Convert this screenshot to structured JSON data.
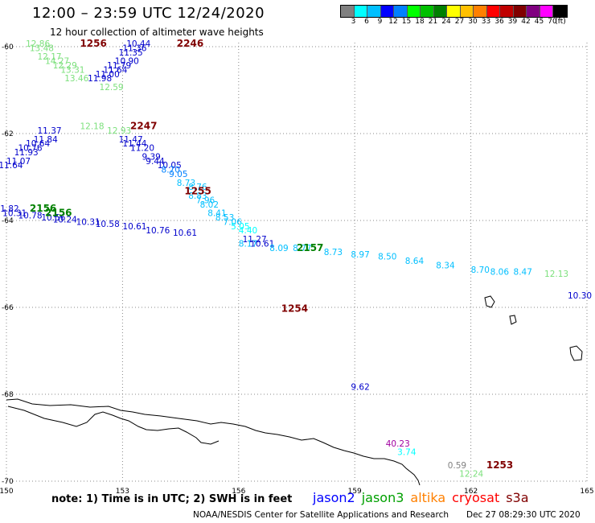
{
  "title": "12:00 – 23:59 UTC 12/24/2020",
  "subtitle": "12 hour collection of altimeter wave heights",
  "legend": {
    "colors": [
      "#808080",
      "#00ffff",
      "#00bfff",
      "#0000ff",
      "#0080ff",
      "#00ff00",
      "#00c000",
      "#008000",
      "#ffff00",
      "#ffc000",
      "#ff8000",
      "#ff0000",
      "#c00000",
      "#800000",
      "#800080",
      "#ff00ff",
      "#000000"
    ],
    "labels": [
      "3",
      "6",
      "9",
      "12",
      "15",
      "18",
      "21",
      "24",
      "27",
      "30",
      "33",
      "36",
      "39",
      "42",
      "45",
      "70",
      "(ft)"
    ]
  },
  "axes": {
    "lon_ticks": [
      "150",
      "153",
      "156",
      "159",
      "162",
      "165"
    ],
    "lat_ticks": [
      "-60",
      "-62",
      "-64",
      "-66",
      "-68",
      "-70"
    ]
  },
  "time_labels": [
    {
      "text": "1256",
      "lon": 151.9,
      "lat": -60.0,
      "color": "#800000"
    },
    {
      "text": "2246",
      "lon": 154.4,
      "lat": -60.0,
      "color": "#800000"
    },
    {
      "text": "2247",
      "lon": 153.2,
      "lat": -61.9,
      "color": "#800000"
    },
    {
      "text": "1255",
      "lon": 154.6,
      "lat": -63.4,
      "color": "#800000"
    },
    {
      "text": "2156",
      "lon": 150.6,
      "lat": -63.8,
      "color": "#008000"
    },
    {
      "text": "2156",
      "lon": 151.0,
      "lat": -63.9,
      "color": "#008000"
    },
    {
      "text": "2157",
      "lon": 157.5,
      "lat": -64.7,
      "color": "#008000"
    },
    {
      "text": "1254",
      "lon": 157.1,
      "lat": -66.1,
      "color": "#800000"
    },
    {
      "text": "1253",
      "lon": 162.4,
      "lat": -69.7,
      "color": "#800000"
    }
  ],
  "wave_heights": [
    {
      "v": "12.86",
      "lon": 150.5,
      "lat": -60.0,
      "c": "#7ce07c"
    },
    {
      "v": "13.48",
      "lon": 150.6,
      "lat": -60.1,
      "c": "#7ce07c"
    },
    {
      "v": "12.17",
      "lon": 150.8,
      "lat": -60.3,
      "c": "#7ce07c"
    },
    {
      "v": "14.27",
      "lon": 151.0,
      "lat": -60.4,
      "c": "#7ce07c"
    },
    {
      "v": "12.29",
      "lon": 151.2,
      "lat": -60.5,
      "c": "#7ce07c"
    },
    {
      "v": "13.31",
      "lon": 151.4,
      "lat": -60.6,
      "c": "#7ce07c"
    },
    {
      "v": "13.46",
      "lon": 151.5,
      "lat": -60.8,
      "c": "#7ce07c"
    },
    {
      "v": "12.59",
      "lon": 152.4,
      "lat": -61.0,
      "c": "#7ce07c"
    },
    {
      "v": "12.18",
      "lon": 151.9,
      "lat": -61.9,
      "c": "#7ce07c"
    },
    {
      "v": "12.93",
      "lon": 152.6,
      "lat": -62.0,
      "c": "#7ce07c"
    },
    {
      "v": "10.44",
      "lon": 153.1,
      "lat": -60.0,
      "c": "#0000cc"
    },
    {
      "v": "11.36",
      "lon": 153.0,
      "lat": -60.1,
      "c": "#0000cc"
    },
    {
      "v": "11.35",
      "lon": 152.9,
      "lat": -60.2,
      "c": "#0000cc"
    },
    {
      "v": "10.90",
      "lon": 152.8,
      "lat": -60.4,
      "c": "#0000cc"
    },
    {
      "v": "11.79",
      "lon": 152.6,
      "lat": -60.5,
      "c": "#0000cc"
    },
    {
      "v": "11.64",
      "lon": 152.5,
      "lat": -60.6,
      "c": "#0000cc"
    },
    {
      "v": "11.00",
      "lon": 152.3,
      "lat": -60.7,
      "c": "#0000cc"
    },
    {
      "v": "11.98",
      "lon": 152.1,
      "lat": -60.8,
      "c": "#0000cc"
    },
    {
      "v": "11.37",
      "lon": 150.8,
      "lat": -62.0,
      "c": "#0000cc"
    },
    {
      "v": "11.84",
      "lon": 150.7,
      "lat": -62.2,
      "c": "#0000cc"
    },
    {
      "v": "10.64",
      "lon": 150.5,
      "lat": -62.3,
      "c": "#0000cc"
    },
    {
      "v": "10.76",
      "lon": 150.3,
      "lat": -62.4,
      "c": "#0000cc"
    },
    {
      "v": "11.93",
      "lon": 150.2,
      "lat": -62.5,
      "c": "#0000cc"
    },
    {
      "v": "11.07",
      "lon": 150.0,
      "lat": -62.7,
      "c": "#0000cc"
    },
    {
      "v": "11.64",
      "lon": 149.8,
      "lat": -62.8,
      "c": "#0000cc"
    },
    {
      "v": "11.47",
      "lon": 152.9,
      "lat": -62.2,
      "c": "#0000cc"
    },
    {
      "v": "11.44",
      "lon": 153.0,
      "lat": -62.3,
      "c": "#0000cc"
    },
    {
      "v": "11.20",
      "lon": 153.2,
      "lat": -62.4,
      "c": "#0000cc"
    },
    {
      "v": "9.39",
      "lon": 153.5,
      "lat": -62.6,
      "c": "#0000cc"
    },
    {
      "v": "9.44",
      "lon": 153.6,
      "lat": -62.7,
      "c": "#0000cc"
    },
    {
      "v": "10.05",
      "lon": 153.9,
      "lat": -62.8,
      "c": "#0000cc"
    },
    {
      "v": "8.70",
      "lon": 154.0,
      "lat": -62.9,
      "c": "#0080ff"
    },
    {
      "v": "9.05",
      "lon": 154.2,
      "lat": -63.0,
      "c": "#0080ff"
    },
    {
      "v": "8.73",
      "lon": 154.4,
      "lat": -63.2,
      "c": "#00bfff"
    },
    {
      "v": "8.76",
      "lon": 154.7,
      "lat": -63.3,
      "c": "#00bfff"
    },
    {
      "v": "8.83",
      "lon": 154.7,
      "lat": -63.5,
      "c": "#00bfff"
    },
    {
      "v": "7.96",
      "lon": 154.9,
      "lat": -63.6,
      "c": "#00bfff"
    },
    {
      "v": "8.02",
      "lon": 155.0,
      "lat": -63.7,
      "c": "#00bfff"
    },
    {
      "v": "8.41",
      "lon": 155.2,
      "lat": -63.9,
      "c": "#00bfff"
    },
    {
      "v": "8.53",
      "lon": 155.4,
      "lat": -64.0,
      "c": "#00bfff"
    },
    {
      "v": "7.06",
      "lon": 155.6,
      "lat": -64.1,
      "c": "#00bfff"
    },
    {
      "v": "5.05",
      "lon": 155.8,
      "lat": -64.2,
      "c": "#00ffff"
    },
    {
      "v": "4.40",
      "lon": 156.0,
      "lat": -64.3,
      "c": "#00ffff"
    },
    {
      "v": "11.27",
      "lon": 156.1,
      "lat": -64.5,
      "c": "#0000cc"
    },
    {
      "v": "11.82",
      "lon": 149.7,
      "lat": -63.8,
      "c": "#0000cc"
    },
    {
      "v": "10.31",
      "lon": 149.9,
      "lat": -63.9,
      "c": "#0000cc"
    },
    {
      "v": "10.78",
      "lon": 150.3,
      "lat": -63.95,
      "c": "#0000cc"
    },
    {
      "v": "10.56",
      "lon": 150.9,
      "lat": -64.0,
      "c": "#0000cc"
    },
    {
      "v": "10.24",
      "lon": 151.2,
      "lat": -64.05,
      "c": "#0000cc"
    },
    {
      "v": "10.31",
      "lon": 151.8,
      "lat": -64.1,
      "c": "#0000cc"
    },
    {
      "v": "10.58",
      "lon": 152.3,
      "lat": -64.15,
      "c": "#0000cc"
    },
    {
      "v": "10.61",
      "lon": 153.0,
      "lat": -64.2,
      "c": "#0000cc"
    },
    {
      "v": "10.76",
      "lon": 153.6,
      "lat": -64.3,
      "c": "#0000cc"
    },
    {
      "v": "10.61",
      "lon": 154.3,
      "lat": -64.35,
      "c": "#0000cc"
    },
    {
      "v": "10.61",
      "lon": 156.3,
      "lat": -64.6,
      "c": "#0000cc"
    },
    {
      "v": "9.62",
      "lon": 158.9,
      "lat": -67.9,
      "c": "#0000cc"
    },
    {
      "v": "10.30",
      "lon": 165.6,
      "lat": -65.8,
      "c": "#0000cc"
    },
    {
      "v": "8.17",
      "lon": 156.0,
      "lat": -64.6,
      "c": "#00bfff"
    },
    {
      "v": "8.09",
      "lon": 156.8,
      "lat": -64.7,
      "c": "#00bfff"
    },
    {
      "v": "8.77",
      "lon": 157.4,
      "lat": -64.7,
      "c": "#00bfff"
    },
    {
      "v": "8.73",
      "lon": 158.2,
      "lat": -64.8,
      "c": "#00bfff"
    },
    {
      "v": "8.97",
      "lon": 158.9,
      "lat": -64.85,
      "c": "#00bfff"
    },
    {
      "v": "8.50",
      "lon": 159.6,
      "lat": -64.9,
      "c": "#00bfff"
    },
    {
      "v": "8.64",
      "lon": 160.3,
      "lat": -65.0,
      "c": "#00bfff"
    },
    {
      "v": "8.34",
      "lon": 161.1,
      "lat": -65.1,
      "c": "#00bfff"
    },
    {
      "v": "8.70",
      "lon": 162.0,
      "lat": -65.2,
      "c": "#00bfff"
    },
    {
      "v": "8.06",
      "lon": 162.5,
      "lat": -65.25,
      "c": "#00bfff"
    },
    {
      "v": "8.47",
      "lon": 163.1,
      "lat": -65.25,
      "c": "#00bfff"
    },
    {
      "v": "12.13",
      "lon": 163.9,
      "lat": -65.3,
      "c": "#7ce07c"
    },
    {
      "v": "40.23",
      "lon": 159.8,
      "lat": -69.2,
      "c": "#a000a0"
    },
    {
      "v": "3.74",
      "lon": 160.1,
      "lat": -69.4,
      "c": "#00ffff"
    },
    {
      "v": "0.59",
      "lon": 161.4,
      "lat": -69.7,
      "c": "#808080"
    },
    {
      "v": "12.24",
      "lon": 161.7,
      "lat": -69.9,
      "c": "#7ce07c"
    }
  ],
  "note": "note: 1) Time is in UTC; 2) SWH is in feet",
  "satellites": [
    {
      "name": "jason2",
      "color": "#0000ff"
    },
    {
      "name": "jason3",
      "color": "#00a000"
    },
    {
      "name": "altika",
      "color": "#ff8000"
    },
    {
      "name": "cryosat",
      "color": "#ff0000"
    },
    {
      "name": "s3a",
      "color": "#800000"
    }
  ],
  "credit": "NOAA/NESDIS Center for Satellite Applications and Research",
  "timestamp": "Dec 27 08:29:30 UTC 2020"
}
